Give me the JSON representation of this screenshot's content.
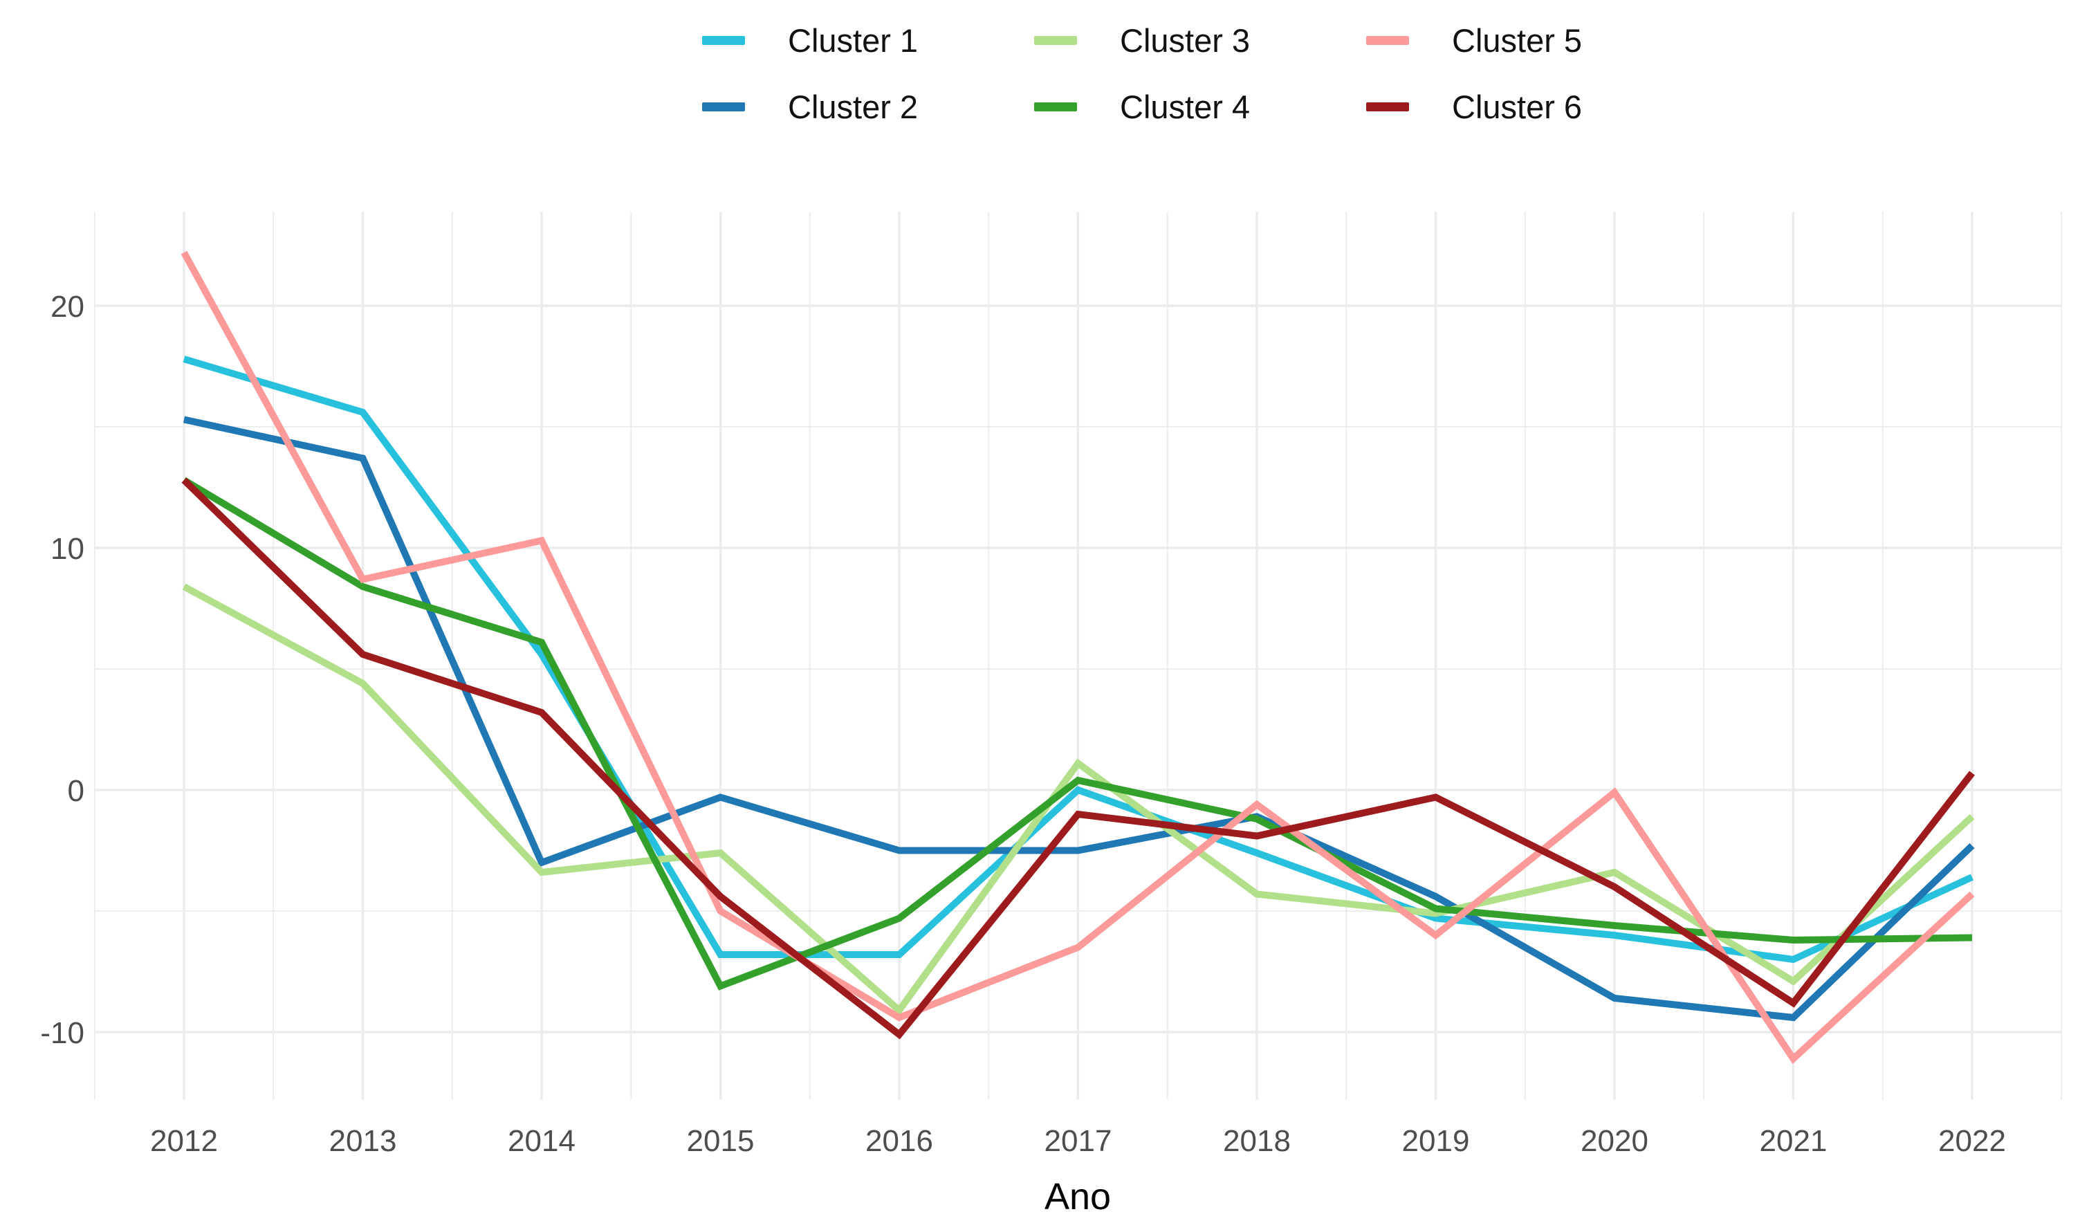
{
  "chart_data": {
    "type": "line",
    "title": "",
    "xlabel": "Ano",
    "ylabel": "",
    "x": [
      2012,
      2013,
      2014,
      2015,
      2016,
      2017,
      2018,
      2019,
      2020,
      2021,
      2022
    ],
    "x_tick_labels": [
      "2012",
      "2013",
      "2014",
      "2015",
      "2016",
      "2017",
      "2018",
      "2019",
      "2020",
      "2021",
      "2022"
    ],
    "y_ticks": [
      20,
      10,
      0,
      -10
    ],
    "y_tick_labels": [
      "20",
      "10",
      "0",
      "-10"
    ],
    "y_minor_ticks": [
      15,
      5,
      -5
    ],
    "ylim": [
      -12.8,
      23.9
    ],
    "grid": true,
    "legend_position": "top-center",
    "legend_rows": [
      [
        "Cluster 1",
        "Cluster 3",
        "Cluster 5"
      ],
      [
        "Cluster 2",
        "Cluster 4",
        "Cluster 6"
      ]
    ],
    "series": [
      {
        "name": "Cluster 1",
        "color": "#27C0DD",
        "values": [
          17.8,
          15.6,
          5.6,
          -6.8,
          -6.8,
          0.0,
          -2.6,
          -5.3,
          -6.0,
          -7.0,
          -3.6
        ]
      },
      {
        "name": "Cluster 2",
        "color": "#1F78B4",
        "values": [
          15.3,
          13.7,
          -3.0,
          -0.3,
          -2.5,
          -2.5,
          -1.1,
          -4.4,
          -8.6,
          -9.4,
          -2.3
        ]
      },
      {
        "name": "Cluster 3",
        "color": "#B2DF8A",
        "values": [
          8.4,
          4.4,
          -3.4,
          -2.6,
          -9.1,
          1.1,
          -4.3,
          -5.1,
          -3.4,
          -7.9,
          -1.1
        ]
      },
      {
        "name": "Cluster 4",
        "color": "#33A02C",
        "values": [
          12.8,
          8.4,
          6.1,
          -8.1,
          -5.3,
          0.4,
          -1.2,
          -4.9,
          -5.6,
          -6.2,
          -6.1
        ]
      },
      {
        "name": "Cluster 5",
        "color": "#FB9A99",
        "values": [
          22.2,
          8.7,
          10.3,
          -5.0,
          -9.4,
          -6.5,
          -0.6,
          -6.0,
          -0.1,
          -11.1,
          -4.3
        ]
      },
      {
        "name": "Cluster 6",
        "color": "#9E1B1D",
        "values": [
          12.8,
          5.6,
          3.2,
          -4.4,
          -10.1,
          -1.0,
          -1.9,
          -0.3,
          -4.0,
          -8.8,
          0.7
        ]
      }
    ],
    "style": {
      "grid_color": "#EBEBEB",
      "tick_label_color": "#4D4D4D",
      "axis_title_color": "#000000",
      "background": "#FFFFFF"
    }
  }
}
